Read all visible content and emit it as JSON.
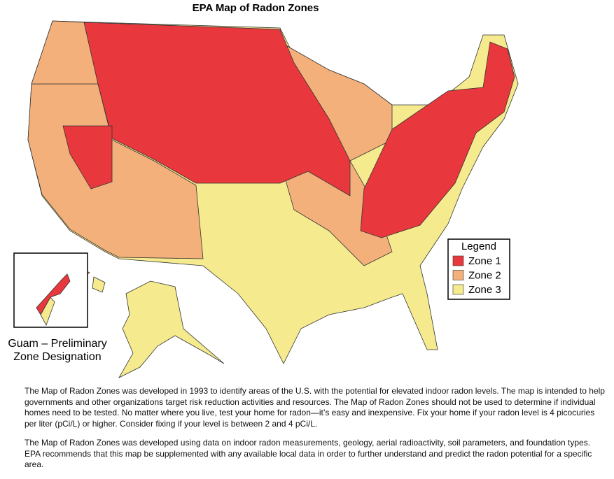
{
  "title": "EPA Map of Radon Zones",
  "legend": {
    "title": "Legend",
    "items": [
      {
        "label": "Zone 1",
        "color": "#e8383d"
      },
      {
        "label": "Zone 2",
        "color": "#f3b07b"
      },
      {
        "label": "Zone 3",
        "color": "#f6ea8e"
      }
    ]
  },
  "inset_label": [
    "Guam – Preliminary",
    "Zone Designation"
  ],
  "paragraphs": [
    "The Map of Radon Zones was developed in 1993 to identify areas of the U.S. with the potential for elevated indoor radon levels. The map is intended to help governments and other organizations target risk reduction activities and resources. The Map of Radon Zones should not be used to determine if individual homes need to be tested. No matter where you live, test your home for radon—it’s easy and inexpensive. Fix your home if your radon level is 4 picocuries per liter (pCi/L) or higher. Consider fixing if your level is between 2 and 4 pCi/L.",
    "The Map of Radon Zones was developed using data on indoor radon measurements, geology, aerial radioactivity, soil parameters, and foundation types. EPA recommends that this map be supplemented with any available local data in order to further understand and predict the radon potential for a specific area."
  ]
}
